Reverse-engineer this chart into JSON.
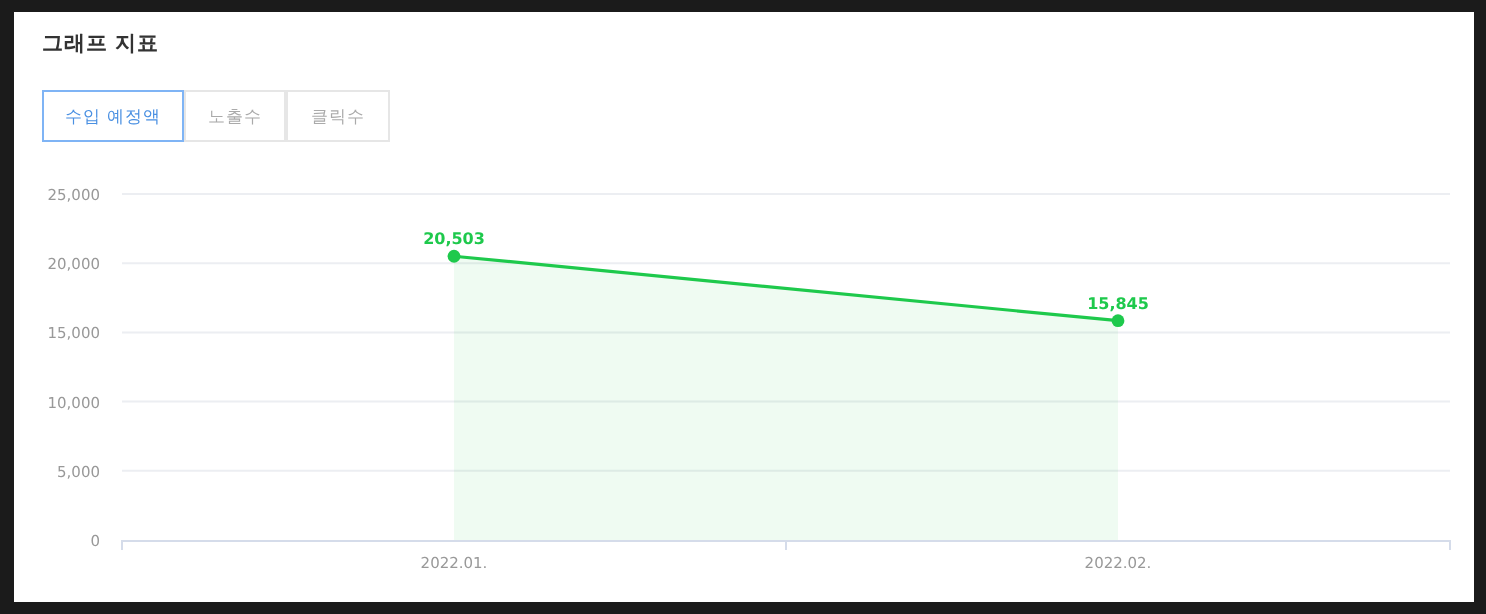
{
  "chart_data": {
    "type": "area",
    "title": "그래프 지표",
    "annotations": [
      "수입 예정액",
      "노출수",
      "클릭수"
    ],
    "categories": [
      "2022.01.",
      "2022.02."
    ],
    "series": [
      {
        "color": "#1ec94c",
        "values": [
          20503,
          15845
        ],
        "value_labels": [
          "20,503",
          "15,845"
        ]
      }
    ],
    "ylim": [
      0,
      25000
    ],
    "yticks": [
      {
        "value": 0,
        "label": "0"
      },
      {
        "value": 5000,
        "label": "5,000"
      },
      {
        "value": 10000,
        "label": "10,000"
      },
      {
        "value": 15000,
        "label": "15,000"
      },
      {
        "value": 20000,
        "label": "20,000"
      },
      {
        "value": 25000,
        "label": "25,000"
      }
    ],
    "grid": "y",
    "marker": "circle"
  }
}
